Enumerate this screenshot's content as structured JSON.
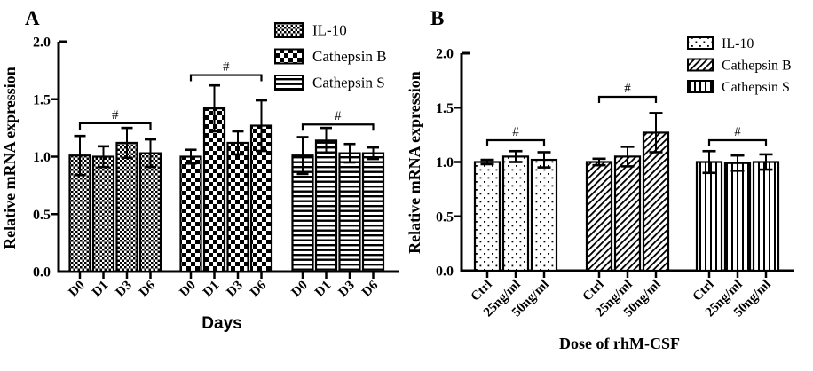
{
  "figure": {
    "background": "#ffffff",
    "ink": "#000000"
  },
  "chart_data": [
    {
      "type": "bar",
      "panel_label": "A",
      "title": "",
      "ylabel": "Relative mRNA expression",
      "xlabel": "Days",
      "ylim": [
        0,
        2.0
      ],
      "ytick_labels": [
        "0.0",
        "0.5",
        "1.0",
        "1.5",
        "2.0"
      ],
      "grid": false,
      "legend_position": "top-right",
      "categories": [
        "D0",
        "D1",
        "D3",
        "D6"
      ],
      "series": [
        {
          "name": "IL-10",
          "pattern": "pA-il10",
          "values": [
            1.01,
            1.0,
            1.12,
            1.03
          ],
          "errors": [
            0.17,
            0.09,
            0.13,
            0.12
          ]
        },
        {
          "name": "Cathepsin B",
          "pattern": "pA-cathB",
          "values": [
            1.0,
            1.42,
            1.12,
            1.27
          ],
          "errors": [
            0.06,
            0.2,
            0.1,
            0.22
          ]
        },
        {
          "name": "Cathepsin S",
          "pattern": "pA-cathS",
          "values": [
            1.01,
            1.14,
            1.03,
            1.03
          ],
          "errors": [
            0.16,
            0.11,
            0.08,
            0.05
          ]
        }
      ],
      "significance": [
        {
          "series": 0,
          "from": 0,
          "to": 3,
          "y": 1.29,
          "label": "#"
        },
        {
          "series": 1,
          "from": 0,
          "to": 3,
          "y": 1.71,
          "label": "#"
        },
        {
          "series": 2,
          "from": 0,
          "to": 3,
          "y": 1.28,
          "label": "#"
        }
      ]
    },
    {
      "type": "bar",
      "panel_label": "B",
      "title": "",
      "ylabel": "Relative mRNA expression",
      "xlabel": "Dose of rhM-CSF",
      "ylim": [
        0,
        2.0
      ],
      "ytick_labels": [
        "0.0",
        "0.5",
        "1.0",
        "1.5",
        "2.0"
      ],
      "grid": false,
      "legend_position": "top-right",
      "categories": [
        "Ctrl",
        "25ng/ml",
        "50ng/ml"
      ],
      "series": [
        {
          "name": "IL-10",
          "pattern": "pB-il10",
          "values": [
            1.0,
            1.05,
            1.02
          ],
          "errors": [
            0.02,
            0.05,
            0.07
          ]
        },
        {
          "name": "Cathepsin B",
          "pattern": "pB-cathB",
          "values": [
            1.0,
            1.05,
            1.27
          ],
          "errors": [
            0.03,
            0.09,
            0.18
          ]
        },
        {
          "name": "Cathepsin S",
          "pattern": "pB-cathS",
          "values": [
            1.0,
            0.99,
            1.0
          ],
          "errors": [
            0.1,
            0.07,
            0.07
          ]
        }
      ],
      "significance": [
        {
          "series": 0,
          "from": 0,
          "to": 2,
          "y": 1.2,
          "label": "#"
        },
        {
          "series": 1,
          "from": 0,
          "to": 2,
          "y": 1.6,
          "label": "#"
        },
        {
          "series": 2,
          "from": 0,
          "to": 2,
          "y": 1.2,
          "label": "#"
        }
      ]
    }
  ]
}
